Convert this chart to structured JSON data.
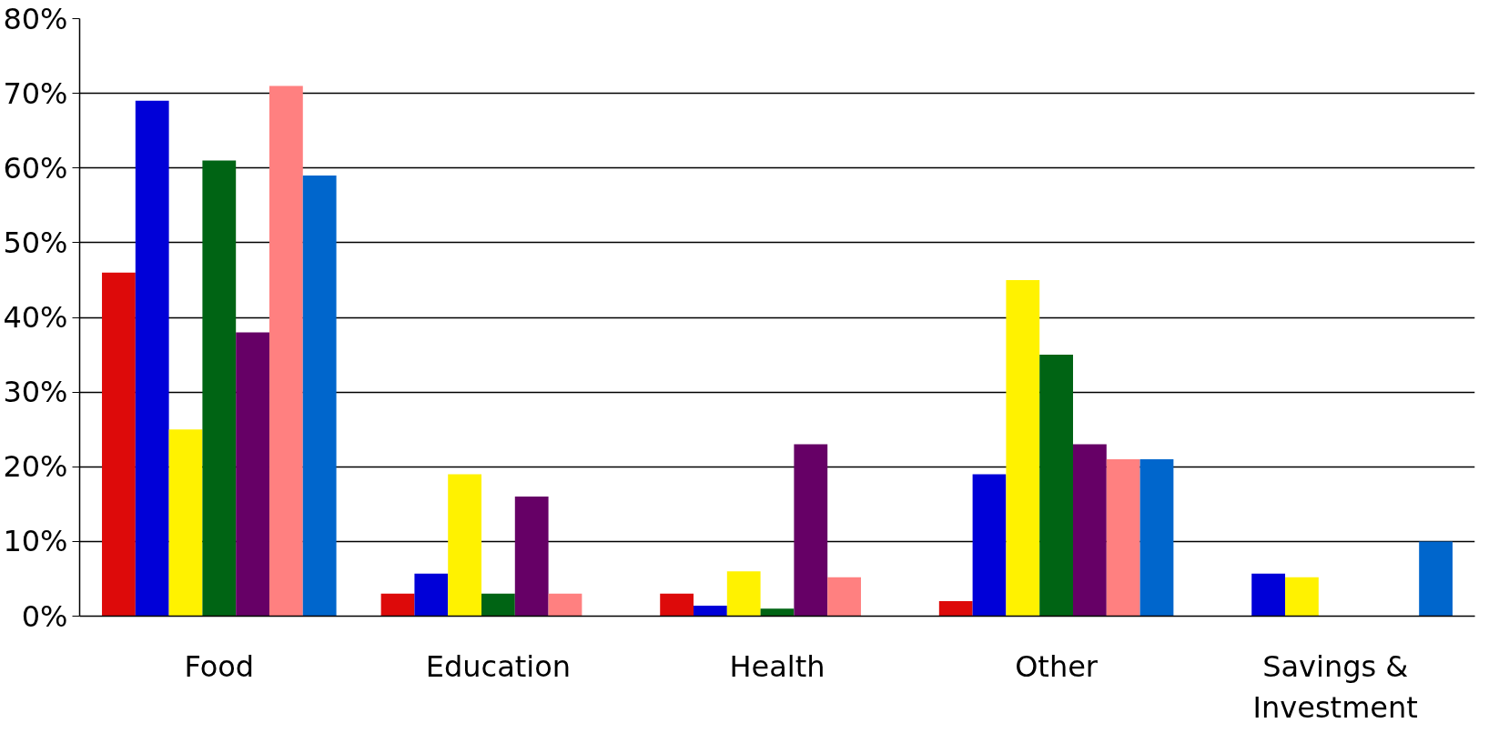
{
  "chart_data": {
    "type": "bar",
    "categories": [
      "Food",
      "Education",
      "Health",
      "Other",
      "Savings & Investment"
    ],
    "series": [
      {
        "color": "#dd0a0a",
        "values": [
          46,
          3,
          3,
          2,
          null
        ]
      },
      {
        "color": "#0000d8",
        "values": [
          69,
          5.7,
          1.4,
          19,
          5.7
        ]
      },
      {
        "color": "#fff200",
        "values": [
          25,
          19,
          6,
          45,
          5.2
        ]
      },
      {
        "color": "#006414",
        "values": [
          61,
          3,
          1,
          35,
          null
        ]
      },
      {
        "color": "#660066",
        "values": [
          38,
          16,
          23,
          23,
          null
        ]
      },
      {
        "color": "#ff8080",
        "values": [
          71,
          3,
          5.2,
          21,
          null
        ]
      },
      {
        "color": "#0066cc",
        "values": [
          59,
          null,
          null,
          21,
          10
        ]
      }
    ],
    "ylim": [
      0,
      80
    ],
    "yticks": [
      {
        "value": 0,
        "label": "0%"
      },
      {
        "value": 10,
        "label": "10%"
      },
      {
        "value": 20,
        "label": "20%"
      },
      {
        "value": 30,
        "label": "30%"
      },
      {
        "value": 40,
        "label": "40%"
      },
      {
        "value": 50,
        "label": "50%"
      },
      {
        "value": 60,
        "label": "60%"
      },
      {
        "value": 70,
        "label": "70%"
      },
      {
        "value": 80,
        "label": "80%"
      }
    ],
    "grid": "y"
  }
}
